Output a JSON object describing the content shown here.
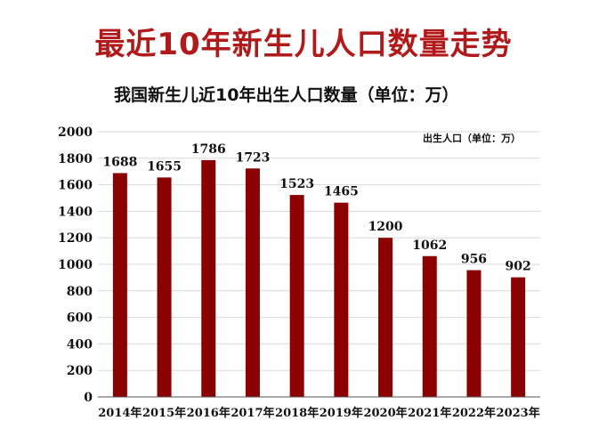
{
  "title": "最近10年新生儿人口数量走势",
  "chart_data": {
    "type": "bar",
    "title": "我国新生儿近10年出生人口数量（单位：万）",
    "legend_note": "出生人口（单位：万）",
    "categories": [
      "2014年",
      "2015年",
      "2016年",
      "2017年",
      "2018年",
      "2019年",
      "2020年",
      "2021年",
      "2022年",
      "2023年"
    ],
    "values": [
      1688,
      1655,
      1786,
      1723,
      1523,
      1465,
      1200,
      1062,
      956,
      902
    ],
    "ylim": [
      0,
      2000
    ],
    "yticks": [
      0,
      200,
      400,
      600,
      800,
      1000,
      1200,
      1400,
      1600,
      1800,
      2000
    ],
    "grid": true,
    "bar_color": "#8b0000"
  }
}
